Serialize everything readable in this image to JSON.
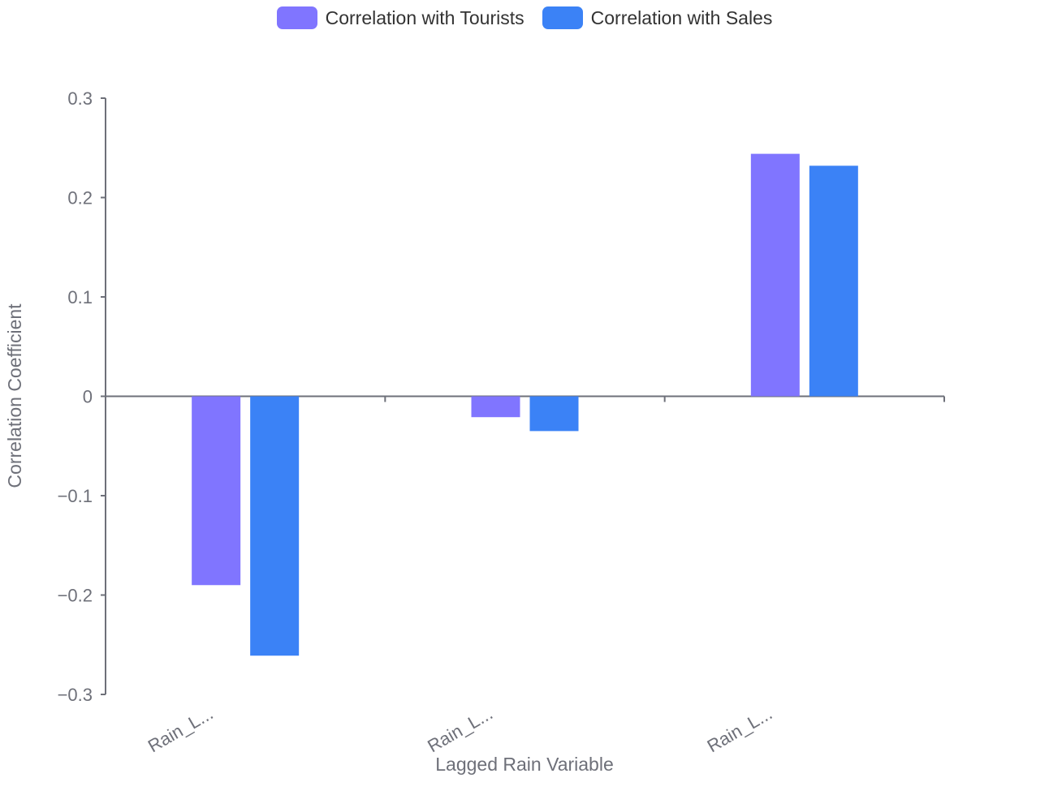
{
  "chart_data": {
    "type": "bar",
    "categories": [
      "Rain_L...",
      "Rain_L...",
      "Rain_L..."
    ],
    "series": [
      {
        "name": "Correlation with Tourists",
        "color": "#8075ff",
        "values": [
          -0.19,
          -0.021,
          0.244
        ]
      },
      {
        "name": "Correlation with Sales",
        "color": "#3b82f6",
        "values": [
          -0.261,
          -0.035,
          0.232
        ]
      }
    ],
    "xlabel": "Lagged Rain Variable",
    "ylabel": "Correlation Coefficient",
    "ylim": [
      -0.3,
      0.3
    ],
    "yticks": [
      0.3,
      0.2,
      0.1,
      0,
      -0.1,
      -0.2,
      -0.3
    ],
    "ytick_labels": [
      "0.3",
      "0.2",
      "0.1",
      "0",
      "−0.1",
      "−0.2",
      "−0.3"
    ],
    "legend_position": "top-center",
    "grid": false
  }
}
